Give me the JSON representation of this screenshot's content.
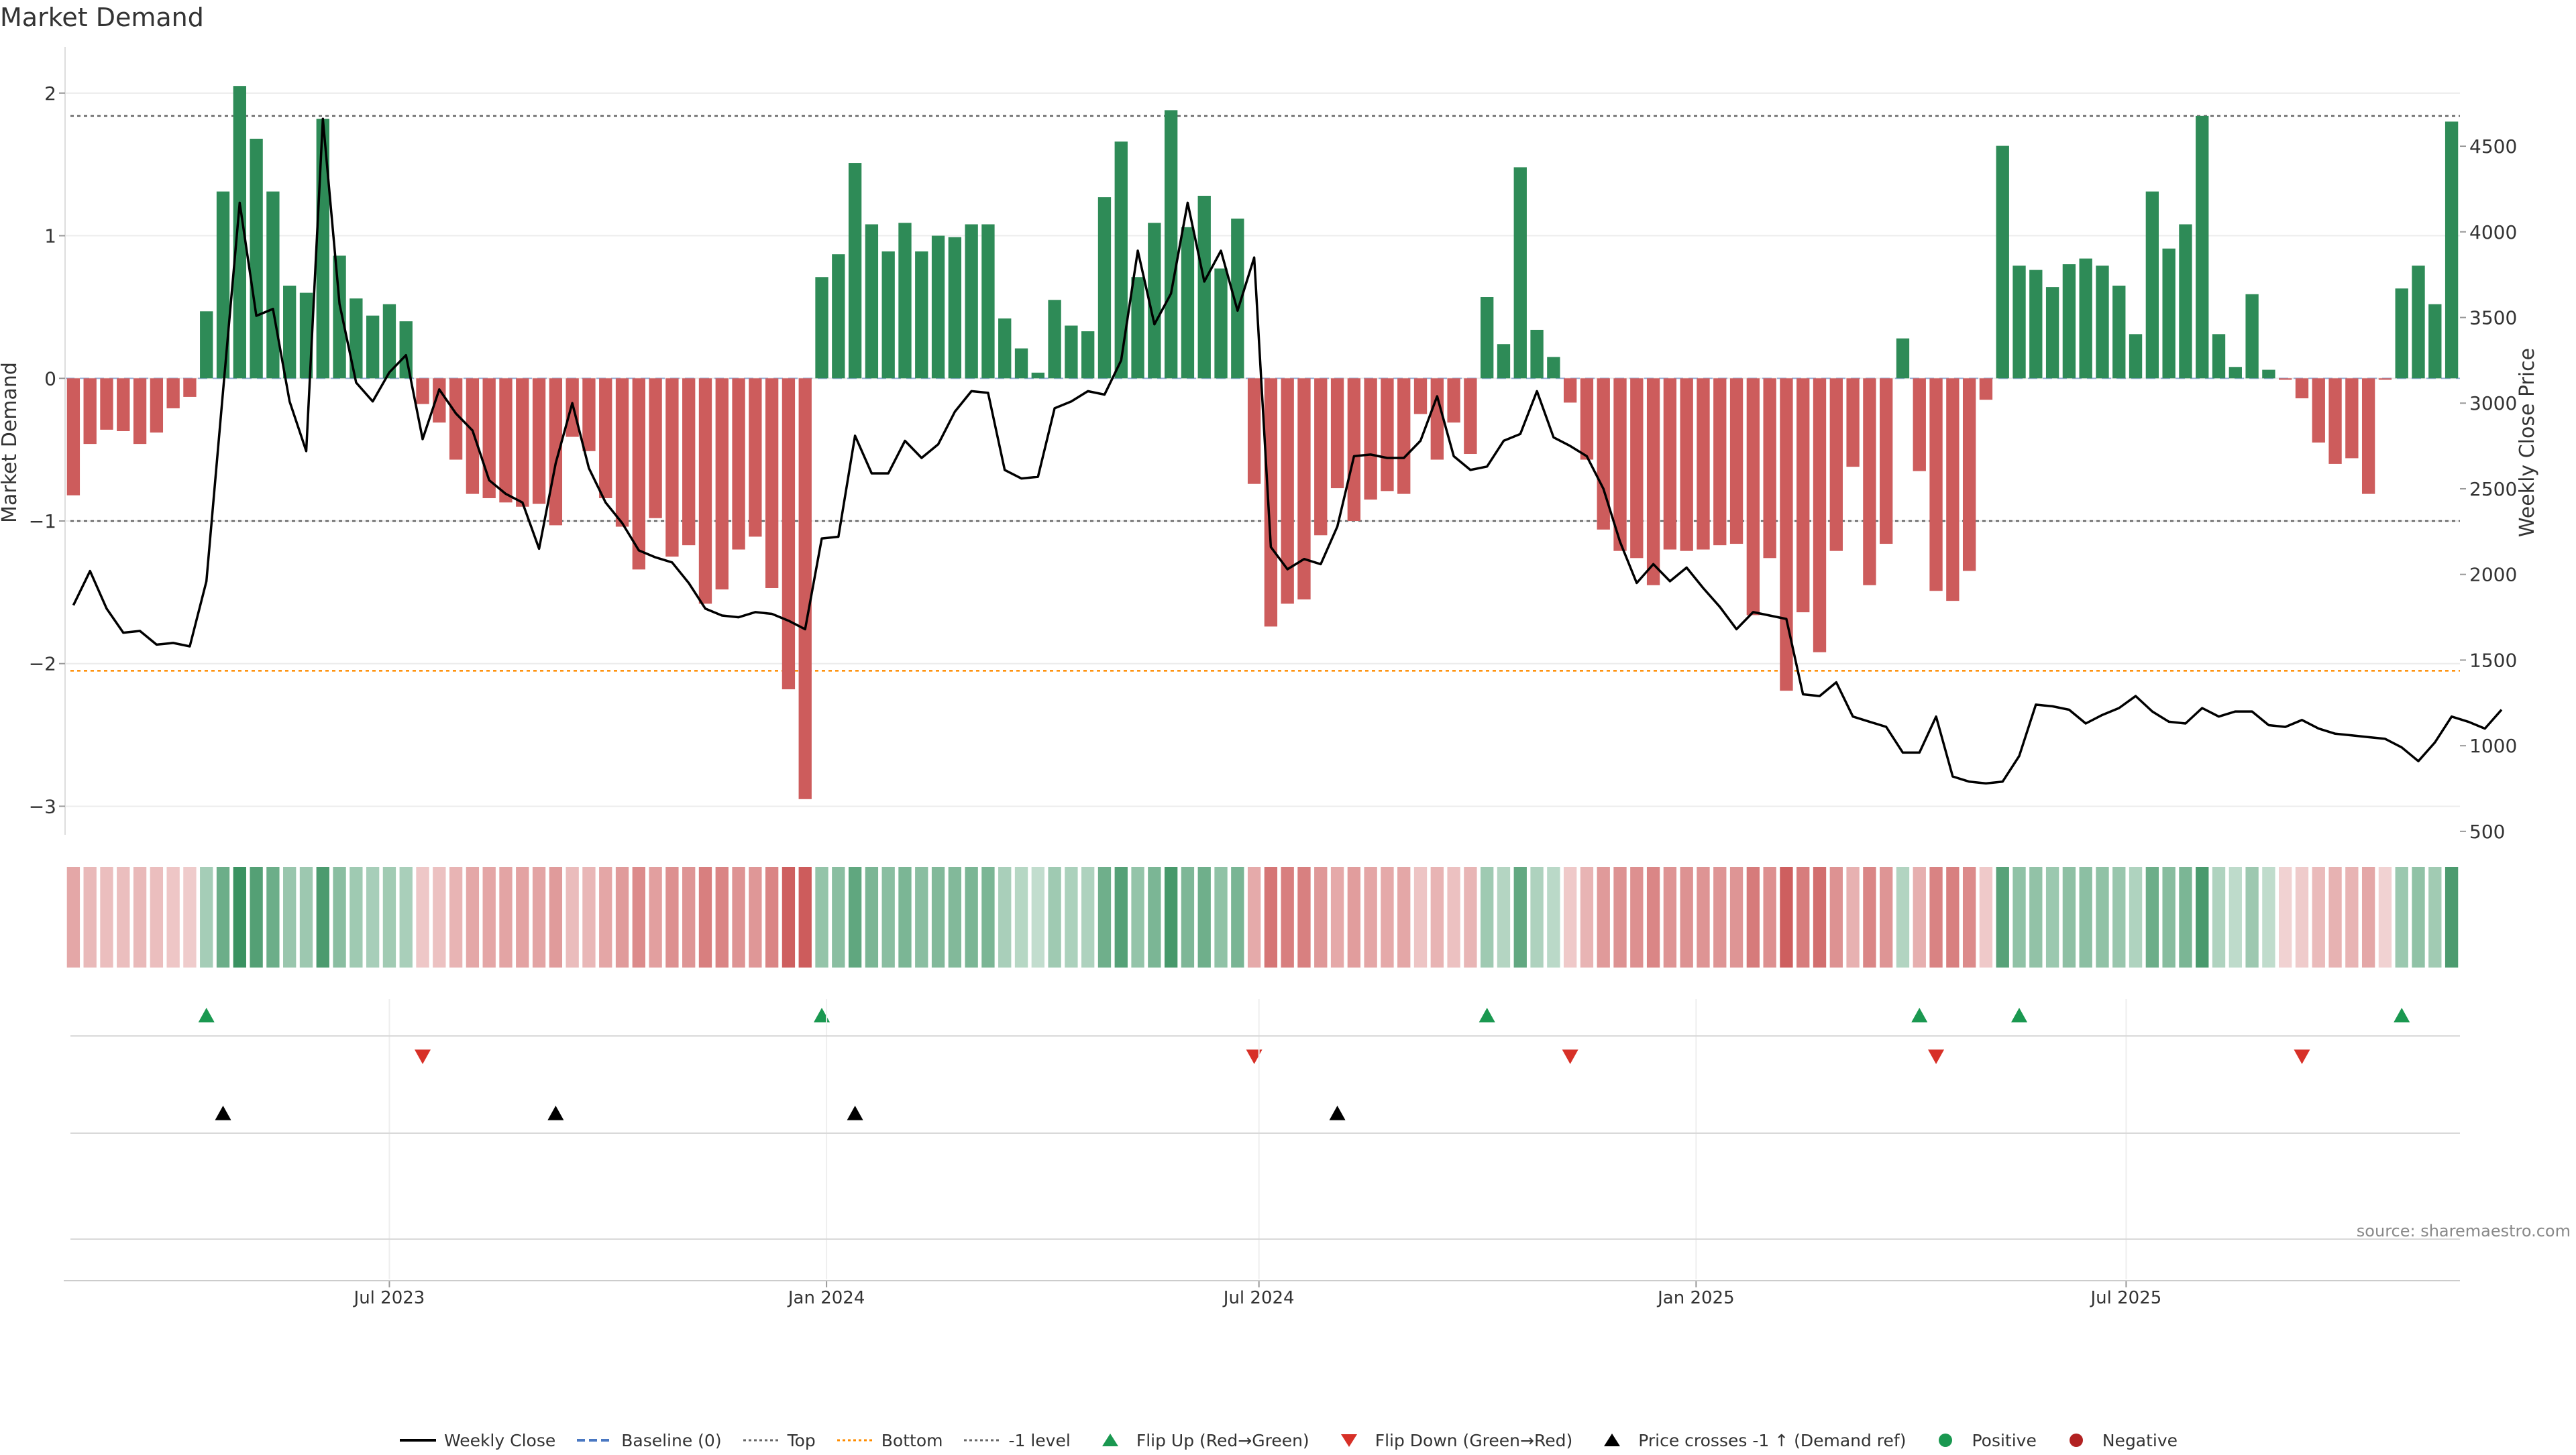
{
  "title": "Market Demand",
  "source_note": "source: sharemaestro.com",
  "colors": {
    "positive": "#2e8b57",
    "negative": "#cd5c5c",
    "price": "#000000",
    "flip_up": "#1a9850",
    "flip_down": "#d73027",
    "bottom": "#ff8c00",
    "dotted": "#666666"
  },
  "legend": [
    {
      "label": "Weekly Close",
      "kind": "line",
      "color": "#000000"
    },
    {
      "label": "Baseline (0)",
      "kind": "dash",
      "color": "#4a78c2"
    },
    {
      "label": "Top",
      "kind": "dot",
      "color": "#666666"
    },
    {
      "label": "Bottom",
      "kind": "dot",
      "color": "#ff8c00"
    },
    {
      "label": "-1 level",
      "kind": "dot",
      "color": "#666666"
    },
    {
      "label": "Flip Up (Red→Green)",
      "kind": "tri-up",
      "color": "#1a9850"
    },
    {
      "label": "Flip Down (Green→Red)",
      "kind": "tri-down",
      "color": "#d73027"
    },
    {
      "label": "Price crosses -1 ↑ (Demand ref)",
      "kind": "tri-up",
      "color": "#000000"
    },
    {
      "label": "Positive",
      "kind": "dot-marker",
      "color": "#1a9850"
    },
    {
      "label": "Negative",
      "kind": "dot-marker",
      "color": "#b22222"
    }
  ],
  "chart_data": {
    "type": "bar",
    "title": "Market Demand",
    "ylabel": "Market Demand",
    "y2label": "Weekly Close Price",
    "ylim": [
      -3.2,
      2.3
    ],
    "y2lim": [
      480,
      5060
    ],
    "y_ticks": [
      -3,
      -2,
      -1,
      0,
      1,
      2
    ],
    "y_tick_labels": [
      "−3",
      "−2",
      "−1",
      "0",
      "1",
      "2"
    ],
    "y2_ticks": [
      500,
      1000,
      1500,
      2000,
      2500,
      3000,
      3500,
      4000,
      4500
    ],
    "x_ticks": [
      {
        "label": "Jul 2023",
        "date": "2023-07-01"
      },
      {
        "label": "Jan 2024",
        "date": "2024-01-01"
      },
      {
        "label": "Jul 2024",
        "date": "2024-07-01"
      },
      {
        "label": "Jan 2025",
        "date": "2025-01-01"
      },
      {
        "label": "Jul 2025",
        "date": "2025-07-01"
      }
    ],
    "reference_lines": {
      "top": 1.84,
      "bottom": -2.05,
      "minus_one": -1,
      "baseline": 0
    },
    "grid": true,
    "legend_position": "bottom",
    "week_start": "2023-02-18",
    "demand": [
      -0.82,
      -0.46,
      -0.36,
      -0.37,
      -0.46,
      -0.38,
      -0.21,
      -0.13,
      0.47,
      1.31,
      2.05,
      1.68,
      1.31,
      0.65,
      0.6,
      1.82,
      0.86,
      0.56,
      0.44,
      0.52,
      0.4,
      -0.18,
      -0.31,
      -0.57,
      -0.81,
      -0.84,
      -0.87,
      -0.9,
      -0.88,
      -1.03,
      -0.41,
      -0.51,
      -0.84,
      -1.04,
      -1.34,
      -0.98,
      -1.25,
      -1.17,
      -1.58,
      -1.48,
      -1.2,
      -1.11,
      -1.47,
      -2.18,
      -2.95,
      0.71,
      0.87,
      1.51,
      1.08,
      0.89,
      1.09,
      0.89,
      1.0,
      0.99,
      1.08,
      1.08,
      0.42,
      0.21,
      0.04,
      0.55,
      0.37,
      0.33,
      1.27,
      1.66,
      0.71,
      1.09,
      1.88,
      1.06,
      1.28,
      0.77,
      1.12,
      -0.74,
      -1.74,
      -1.58,
      -1.55,
      -1.1,
      -0.77,
      -1.0,
      -0.85,
      -0.79,
      -0.81,
      -0.25,
      -0.57,
      -0.31,
      -0.53,
      0.57,
      0.24,
      1.48,
      0.34,
      0.15,
      -0.17,
      -0.57,
      -1.06,
      -1.21,
      -1.26,
      -1.45,
      -1.2,
      -1.21,
      -1.2,
      -1.17,
      -1.16,
      -1.66,
      -1.26,
      -2.19,
      -1.64,
      -1.92,
      -1.21,
      -0.62,
      -1.45,
      -1.16,
      0.28,
      -0.65,
      -1.49,
      -1.56,
      -1.35,
      -0.15,
      1.63,
      0.79,
      0.76,
      0.64,
      0.8,
      0.84,
      0.79,
      0.65,
      0.31,
      1.31,
      0.91,
      1.08,
      1.84,
      0.31,
      0.08,
      0.59,
      0.06,
      -0.01,
      -0.14,
      -0.45,
      -0.6,
      -0.56,
      -0.81,
      -0.01,
      0.63,
      0.79,
      0.52,
      1.8
    ],
    "price": [
      1820,
      2020,
      1800,
      1660,
      1670,
      1590,
      1600,
      1580,
      1960,
      3070,
      4170,
      3510,
      3550,
      3010,
      2720,
      4660,
      3580,
      3120,
      3010,
      3180,
      3280,
      2790,
      3080,
      2940,
      2840,
      2550,
      2470,
      2420,
      2150,
      2650,
      3000,
      2620,
      2420,
      2300,
      2140,
      2100,
      2070,
      1950,
      1800,
      1760,
      1750,
      1780,
      1770,
      1730,
      1680,
      2210,
      2220,
      2810,
      2590,
      2590,
      2780,
      2680,
      2760,
      2950,
      3070,
      3060,
      2610,
      2560,
      2570,
      2970,
      3010,
      3070,
      3050,
      3250,
      3890,
      3460,
      3640,
      4170,
      3710,
      3890,
      3540,
      3850,
      2160,
      2030,
      2090,
      2060,
      2280,
      2690,
      2700,
      2680,
      2680,
      2780,
      3040,
      2690,
      2610,
      2630,
      2780,
      2820,
      3070,
      2800,
      2750,
      2690,
      2500,
      2190,
      1950,
      2060,
      1960,
      2040,
      1920,
      1810,
      1680,
      1780,
      1760,
      1740,
      1300,
      1290,
      1370,
      1170,
      1140,
      1110,
      960,
      960,
      1170,
      820,
      790,
      780,
      790,
      940,
      1240,
      1230,
      1210,
      1130,
      1180,
      1220,
      1290,
      1200,
      1140,
      1130,
      1220,
      1170,
      1200,
      1200,
      1120,
      1110,
      1150,
      1100,
      1070,
      1060,
      1050,
      1040,
      990,
      910,
      1020,
      1170,
      1140,
      1100,
      1210
    ],
    "flip_up_idx": [
      8,
      45,
      85,
      111,
      117,
      140
    ],
    "flip_down_idx": [
      21,
      71,
      90,
      112,
      134
    ],
    "price_cross_idx": [
      9,
      29,
      47,
      76
    ]
  }
}
